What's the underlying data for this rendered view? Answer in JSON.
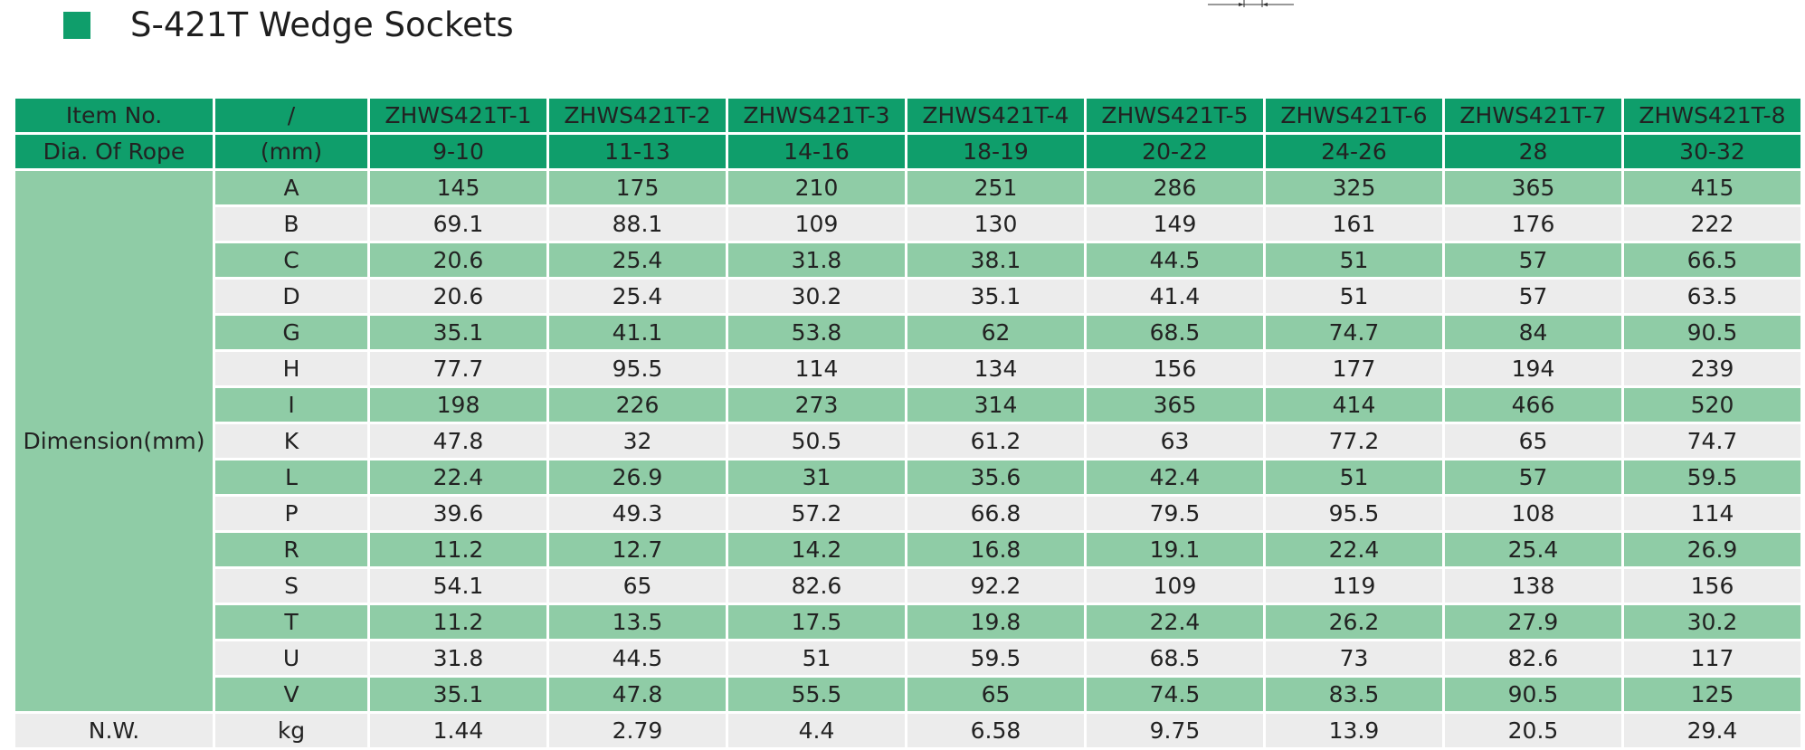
{
  "title": "S-421T Wedge Sockets",
  "colors": {
    "header_green": "#0f9e6b",
    "row_green": "#8fcca6",
    "row_gray": "#ececec"
  },
  "header_rows": [
    {
      "label": "Item No.",
      "unit": "/",
      "values": [
        "ZHWS421T-1",
        "ZHWS421T-2",
        "ZHWS421T-3",
        "ZHWS421T-4",
        "ZHWS421T-5",
        "ZHWS421T-6",
        "ZHWS421T-7",
        "ZHWS421T-8"
      ]
    },
    {
      "label": "Dia. Of Rope",
      "unit": "(mm)",
      "values": [
        "9-10",
        "11-13",
        "14-16",
        "18-19",
        "20-22",
        "24-26",
        "28",
        "30-32"
      ]
    }
  ],
  "dimension_label": "Dimension(mm)",
  "dimension_rows": [
    {
      "name": "A",
      "values": [
        "145",
        "175",
        "210",
        "251",
        "286",
        "325",
        "365",
        "415"
      ]
    },
    {
      "name": "B",
      "values": [
        "69.1",
        "88.1",
        "109",
        "130",
        "149",
        "161",
        "176",
        "222"
      ]
    },
    {
      "name": "C",
      "values": [
        "20.6",
        "25.4",
        "31.8",
        "38.1",
        "44.5",
        "51",
        "57",
        "66.5"
      ]
    },
    {
      "name": "D",
      "values": [
        "20.6",
        "25.4",
        "30.2",
        "35.1",
        "41.4",
        "51",
        "57",
        "63.5"
      ]
    },
    {
      "name": "G",
      "values": [
        "35.1",
        "41.1",
        "53.8",
        "62",
        "68.5",
        "74.7",
        "84",
        "90.5"
      ]
    },
    {
      "name": "H",
      "values": [
        "77.7",
        "95.5",
        "114",
        "134",
        "156",
        "177",
        "194",
        "239"
      ]
    },
    {
      "name": "I",
      "values": [
        "198",
        "226",
        "273",
        "314",
        "365",
        "414",
        "466",
        "520"
      ]
    },
    {
      "name": "K",
      "values": [
        "47.8",
        "32",
        "50.5",
        "61.2",
        "63",
        "77.2",
        "65",
        "74.7"
      ]
    },
    {
      "name": "L",
      "values": [
        "22.4",
        "26.9",
        "31",
        "35.6",
        "42.4",
        "51",
        "57",
        "59.5"
      ]
    },
    {
      "name": "P",
      "values": [
        "39.6",
        "49.3",
        "57.2",
        "66.8",
        "79.5",
        "95.5",
        "108",
        "114"
      ]
    },
    {
      "name": "R",
      "values": [
        "11.2",
        "12.7",
        "14.2",
        "16.8",
        "19.1",
        "22.4",
        "25.4",
        "26.9"
      ]
    },
    {
      "name": "S",
      "values": [
        "54.1",
        "65",
        "82.6",
        "92.2",
        "109",
        "119",
        "138",
        "156"
      ]
    },
    {
      "name": "T",
      "values": [
        "11.2",
        "13.5",
        "17.5",
        "19.8",
        "22.4",
        "26.2",
        "27.9",
        "30.2"
      ]
    },
    {
      "name": "U",
      "values": [
        "31.8",
        "44.5",
        "51",
        "59.5",
        "68.5",
        "73",
        "82.6",
        "117"
      ]
    },
    {
      "name": "V",
      "values": [
        "35.1",
        "47.8",
        "55.5",
        "65",
        "74.5",
        "83.5",
        "90.5",
        "125"
      ]
    }
  ],
  "weight_row": {
    "label": "N.W.",
    "unit": "kg",
    "values": [
      "1.44",
      "2.79",
      "4.4",
      "6.58",
      "9.75",
      "13.9",
      "20.5",
      "29.4"
    ]
  }
}
